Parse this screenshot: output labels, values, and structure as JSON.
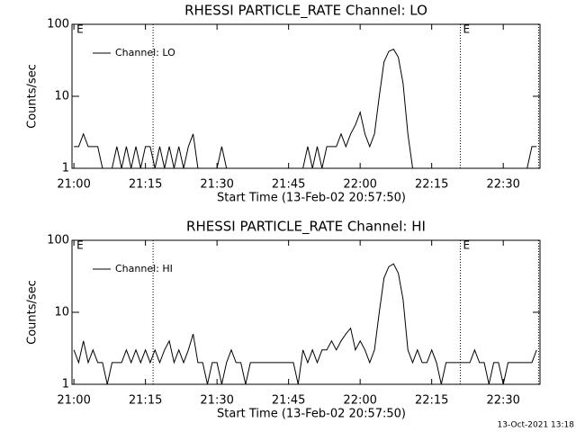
{
  "footer": "13-Oct-2021 13:18",
  "chart_data": [
    {
      "type": "line",
      "title": "RHESSI PARTICLE_RATE Channel: LO",
      "xlabel": "Start Time (13-Feb-02 20:57:50)",
      "ylabel": "Counts/sec",
      "log_y": true,
      "legend": "upper left",
      "ylim": [
        1,
        100
      ],
      "yticks": [
        1,
        10,
        100
      ],
      "xlim": [
        -0.4,
        97.7
      ],
      "xticks": [
        {
          "value": 0,
          "label": "21:00"
        },
        {
          "value": 15,
          "label": "21:15"
        },
        {
          "value": 30,
          "label": "21:30"
        },
        {
          "value": 45,
          "label": "21:45"
        },
        {
          "value": 60,
          "label": "22:00"
        },
        {
          "value": 75,
          "label": "22:15"
        },
        {
          "value": 90,
          "label": "22:30"
        }
      ],
      "vlines": [
        16.6,
        81,
        97.4
      ],
      "annotations": [
        {
          "text": "E",
          "x": 0
        },
        {
          "text": "E",
          "x": 81
        }
      ],
      "x": [
        0,
        1,
        2,
        3,
        4,
        5,
        6,
        7,
        8,
        9,
        10,
        11,
        12,
        13,
        14,
        15,
        16,
        17,
        18,
        19,
        20,
        21,
        22,
        23,
        24,
        25,
        26,
        27,
        28,
        29,
        30,
        31,
        32,
        33,
        34,
        35,
        36,
        37,
        38,
        39,
        40,
        41,
        42,
        43,
        44,
        45,
        46,
        47,
        48,
        49,
        50,
        51,
        52,
        53,
        54,
        55,
        56,
        57,
        58,
        59,
        60,
        61,
        62,
        63,
        64,
        65,
        66,
        67,
        68,
        69,
        70,
        71,
        72,
        73,
        74,
        75,
        76,
        77,
        78,
        79,
        80,
        81,
        82,
        83,
        84,
        85,
        86,
        87,
        88,
        89,
        90,
        91,
        92,
        93,
        94,
        95,
        96,
        97
      ],
      "series": [
        {
          "name": "Channel: LO",
          "color": "#000000",
          "values": [
            2,
            2,
            3,
            2,
            2,
            2,
            1,
            1,
            1,
            2,
            1,
            2,
            1,
            2,
            1,
            2,
            2,
            1,
            2,
            1,
            2,
            1,
            2,
            1,
            2,
            3,
            1,
            1,
            1,
            1,
            1,
            2,
            1,
            1,
            1,
            1,
            1,
            1,
            1,
            1,
            1,
            1,
            1,
            1,
            1,
            1,
            1,
            1,
            1,
            2,
            1,
            2,
            1,
            2,
            2,
            2,
            3,
            2,
            3,
            4,
            6,
            3,
            2,
            3,
            10,
            30,
            42,
            45,
            35,
            15,
            3,
            1,
            1,
            1,
            1,
            1,
            1,
            1,
            1,
            1,
            1,
            1,
            1,
            1,
            1,
            1,
            1,
            1,
            1,
            1,
            1,
            1,
            1,
            1,
            1,
            1,
            2,
            2
          ]
        }
      ]
    },
    {
      "type": "line",
      "title": "RHESSI PARTICLE_RATE Channel: HI",
      "xlabel": "Start Time (13-Feb-02 20:57:50)",
      "ylabel": "Counts/sec",
      "log_y": true,
      "legend": "upper left",
      "ylim": [
        1,
        100
      ],
      "yticks": [
        1,
        10,
        100
      ],
      "xlim": [
        -0.4,
        97.7
      ],
      "xticks": [
        {
          "value": 0,
          "label": "21:00"
        },
        {
          "value": 15,
          "label": "21:15"
        },
        {
          "value": 30,
          "label": "21:30"
        },
        {
          "value": 45,
          "label": "21:45"
        },
        {
          "value": 60,
          "label": "22:00"
        },
        {
          "value": 75,
          "label": "22:15"
        },
        {
          "value": 90,
          "label": "22:30"
        }
      ],
      "vlines": [
        16.6,
        81,
        97.4
      ],
      "annotations": [
        {
          "text": "E",
          "x": 0
        },
        {
          "text": "E",
          "x": 81
        }
      ],
      "x": [
        0,
        1,
        2,
        3,
        4,
        5,
        6,
        7,
        8,
        9,
        10,
        11,
        12,
        13,
        14,
        15,
        16,
        17,
        18,
        19,
        20,
        21,
        22,
        23,
        24,
        25,
        26,
        27,
        28,
        29,
        30,
        31,
        32,
        33,
        34,
        35,
        36,
        37,
        38,
        39,
        40,
        41,
        42,
        43,
        44,
        45,
        46,
        47,
        48,
        49,
        50,
        51,
        52,
        53,
        54,
        55,
        56,
        57,
        58,
        59,
        60,
        61,
        62,
        63,
        64,
        65,
        66,
        67,
        68,
        69,
        70,
        71,
        72,
        73,
        74,
        75,
        76,
        77,
        78,
        79,
        80,
        81,
        82,
        83,
        84,
        85,
        86,
        87,
        88,
        89,
        90,
        91,
        92,
        93,
        94,
        95,
        96,
        97
      ],
      "series": [
        {
          "name": "Channel: HI",
          "color": "#000000",
          "values": [
            3,
            2,
            4,
            2,
            3,
            2,
            2,
            1,
            2,
            2,
            2,
            3,
            2,
            3,
            2,
            3,
            2,
            3,
            2,
            3,
            4,
            2,
            3,
            2,
            3,
            5,
            2,
            2,
            1,
            2,
            2,
            1,
            2,
            3,
            2,
            2,
            1,
            2,
            2,
            2,
            2,
            2,
            2,
            2,
            2,
            2,
            2,
            1,
            3,
            2,
            3,
            2,
            3,
            3,
            4,
            3,
            4,
            5,
            6,
            3,
            4,
            3,
            2,
            3,
            10,
            30,
            43,
            47,
            35,
            15,
            3,
            2,
            3,
            2,
            2,
            3,
            2,
            1,
            2,
            2,
            2,
            2,
            2,
            2,
            3,
            2,
            2,
            1,
            2,
            2,
            1,
            2,
            2,
            2,
            2,
            2,
            2,
            3
          ]
        }
      ]
    }
  ]
}
